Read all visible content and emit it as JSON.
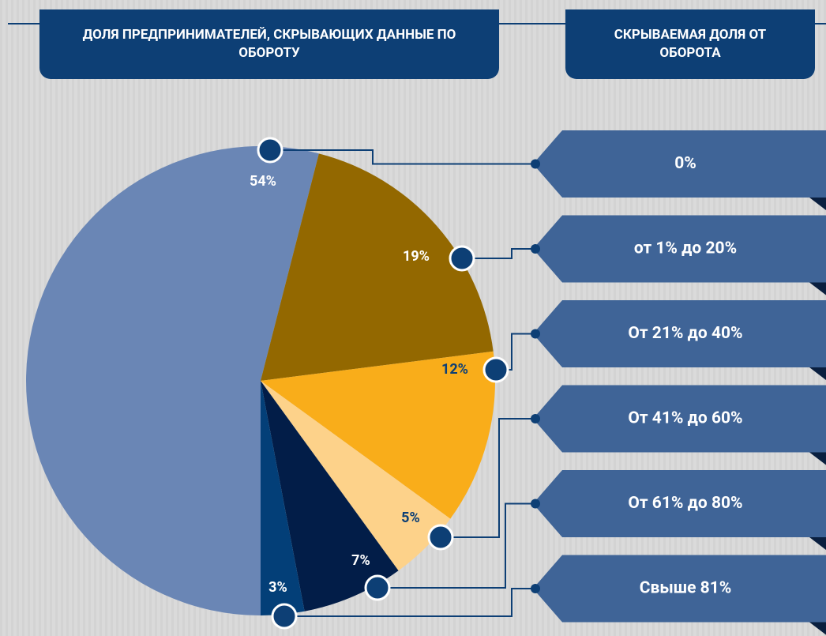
{
  "chart_data": {
    "type": "pie",
    "title": "ДОЛЯ ПРЕДПРИНИМАТЕЛЕЙ, СКРЫВАЮЩИХ ДАННЫЕ ПО ОБОРОТУ",
    "legend_title": "СКРЫВАЕМАЯ ДОЛЯ ОТ ОБОРОТА",
    "categories": [
      "0%",
      "от 1% до 20%",
      "От 21% до 40%",
      "От 41% до 60%",
      "От 61% до 80%",
      "Свыше 81%"
    ],
    "values": [
      54,
      19,
      12,
      5,
      7,
      3
    ],
    "value_labels": [
      "54%",
      "19%",
      "12%",
      "5%",
      "7%",
      "3%"
    ],
    "colors": [
      "#6a86b5",
      "#936800",
      "#f9ad1a",
      "#fdd28a",
      "#021d48",
      "#033f78"
    ]
  }
}
